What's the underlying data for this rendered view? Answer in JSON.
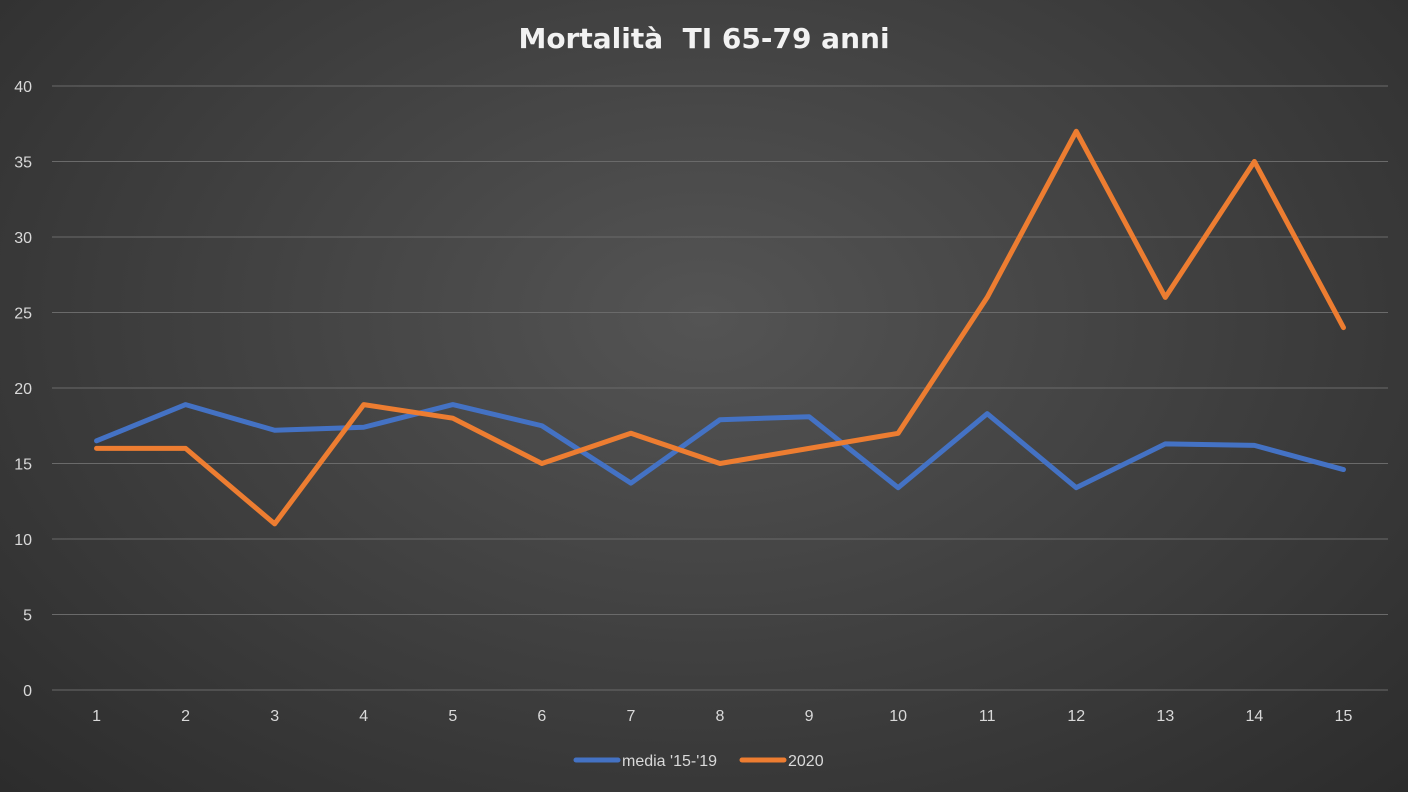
{
  "chart_data": {
    "type": "line",
    "title": "Mortalità  TI 65-79 anni",
    "xlabel": "",
    "ylabel": "",
    "x": [
      1,
      2,
      3,
      4,
      5,
      6,
      7,
      8,
      9,
      10,
      11,
      12,
      13,
      14,
      15
    ],
    "ylim": [
      0,
      40
    ],
    "yticks": [
      0,
      5,
      10,
      15,
      20,
      25,
      30,
      35,
      40
    ],
    "grid": true,
    "legend_position": "bottom",
    "series": [
      {
        "name": "media '15-'19",
        "color": "#4472c4",
        "values": [
          16.5,
          18.9,
          17.2,
          17.4,
          18.9,
          17.5,
          13.7,
          17.9,
          18.1,
          13.4,
          18.3,
          13.4,
          16.3,
          16.2,
          14.6
        ]
      },
      {
        "name": "2020",
        "color": "#ed7d31",
        "values": [
          16,
          16,
          11,
          18.9,
          18,
          15,
          17,
          15,
          16,
          17,
          26,
          37,
          26,
          35,
          24
        ]
      }
    ]
  }
}
